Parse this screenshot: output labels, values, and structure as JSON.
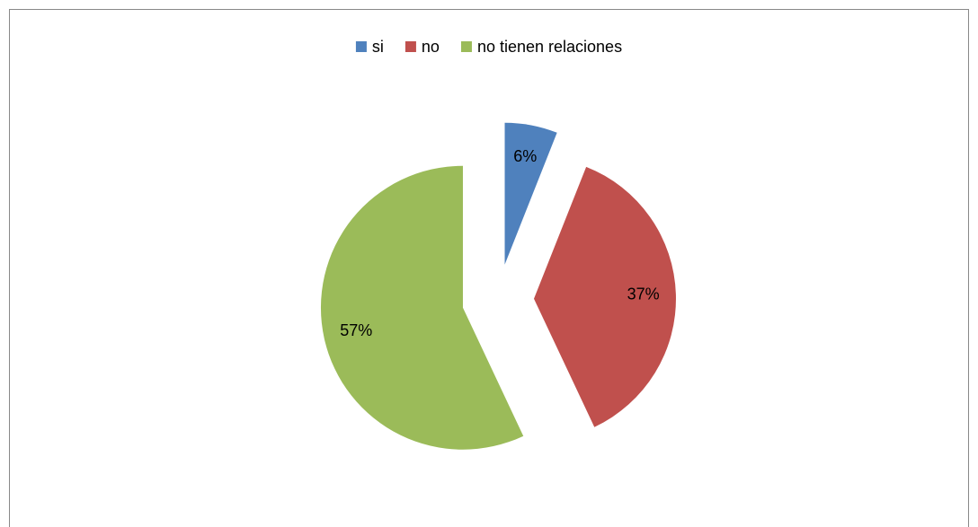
{
  "chart_data": {
    "type": "pie",
    "categories": [
      "si",
      "no",
      "no tienen relaciones"
    ],
    "values": [
      6,
      37,
      57
    ],
    "value_labels": [
      "6%",
      "37%",
      "57%"
    ],
    "colors": [
      "#4f81bd",
      "#c0504d",
      "#9bbb59"
    ],
    "legend": "top",
    "exploded": true
  }
}
